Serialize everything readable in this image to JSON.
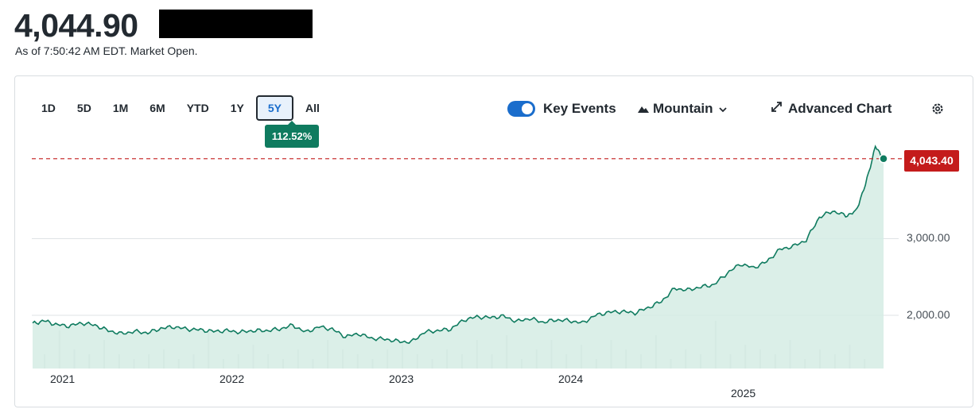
{
  "header": {
    "price": "4,044.90",
    "as_of": "As of 7:50:42 AM EDT. Market Open."
  },
  "toolbar": {
    "ranges": [
      "1D",
      "5D",
      "1M",
      "6M",
      "YTD",
      "1Y",
      "5Y",
      "All"
    ],
    "active_range": "5Y",
    "change_badge": "112.52%",
    "key_events_label": "Key Events",
    "key_events_on": true,
    "chart_type_label": "Mountain",
    "advanced_label": "Advanced Chart",
    "icons": [
      "mountain-icon",
      "chevron-down-icon",
      "expand-icon",
      "gear-icon"
    ]
  },
  "colors": {
    "line": "#0f7b5f",
    "area": "#d5ece4",
    "last_tag": "#c41b1b",
    "badge": "#0f7b5f",
    "toggle": "#1a6dcc"
  },
  "chart_data": {
    "type": "area",
    "x_tick_labels": [
      "2021",
      "2022",
      "2023",
      "2024",
      "2025"
    ],
    "y_tick_labels": [
      "3,000.00",
      "2,000.00"
    ],
    "y_ticks": [
      3000,
      2000
    ],
    "ylim": [
      1300,
      4300
    ],
    "last_value_label": "4,043.40",
    "last_value": 4043.4,
    "grid": "horizontal",
    "series": [
      {
        "x": [
          2020.58,
          2020.65,
          2020.72,
          2020.8,
          2020.88,
          2020.96,
          2021.04,
          2021.12,
          2021.2,
          2021.28,
          2021.36,
          2021.44,
          2021.52,
          2021.6,
          2021.68,
          2021.76,
          2021.84,
          2021.92,
          2022.0,
          2022.08,
          2022.16,
          2022.24,
          2022.32,
          2022.4,
          2022.48,
          2022.56,
          2022.64,
          2022.72,
          2022.8,
          2022.88,
          2022.96,
          2023.04,
          2023.12,
          2023.2,
          2023.28,
          2023.36,
          2023.44,
          2023.52,
          2023.6,
          2023.68,
          2023.76,
          2023.84,
          2023.92,
          2024.0,
          2024.08,
          2024.16,
          2024.24,
          2024.32,
          2024.4,
          2024.48,
          2024.56,
          2024.64,
          2024.72,
          2024.8,
          2024.88,
          2024.96,
          2025.04,
          2025.12,
          2025.2,
          2025.28,
          2025.36,
          2025.44,
          2025.52,
          2025.58,
          2025.64,
          2025.7,
          2025.75
        ],
        "values": [
          1890,
          1930,
          1880,
          1860,
          1900,
          1870,
          1800,
          1760,
          1790,
          1770,
          1830,
          1850,
          1820,
          1810,
          1790,
          1800,
          1780,
          1800,
          1800,
          1820,
          1870,
          1780,
          1850,
          1820,
          1720,
          1760,
          1700,
          1690,
          1660,
          1650,
          1780,
          1800,
          1820,
          1940,
          1980,
          1970,
          1990,
          1920,
          1960,
          1910,
          1940,
          1930,
          1900,
          2000,
          2040,
          2050,
          2030,
          2100,
          2180,
          2350,
          2330,
          2370,
          2400,
          2550,
          2670,
          2620,
          2700,
          2860,
          2900,
          2980,
          3280,
          3360,
          3300,
          3350,
          3700,
          4200,
          4043
        ]
      }
    ],
    "volume_bars": [
      0.3,
      0.8,
      0.4,
      0.3,
      0.6,
      0.3,
      0.2,
      0.3,
      0.4,
      0.2,
      0.3,
      0.8,
      0.2,
      0.3,
      0.5,
      0.3,
      0.2,
      0.4,
      0.2,
      0.6,
      0.4,
      0.3,
      0.2,
      0.4,
      0.5,
      0.3,
      0.2,
      0.4,
      0.3,
      0.6,
      0.3,
      0.7,
      0.2,
      0.4,
      0.6,
      0.3,
      0.5,
      0.2,
      0.6,
      0.4,
      0.3,
      0.7,
      0.2,
      0.4,
      0.3,
      1.0,
      0.3,
      0.5,
      0.4,
      0.3,
      0.6,
      0.2,
      0.4,
      0.3,
      0.5,
      0.2
    ]
  }
}
